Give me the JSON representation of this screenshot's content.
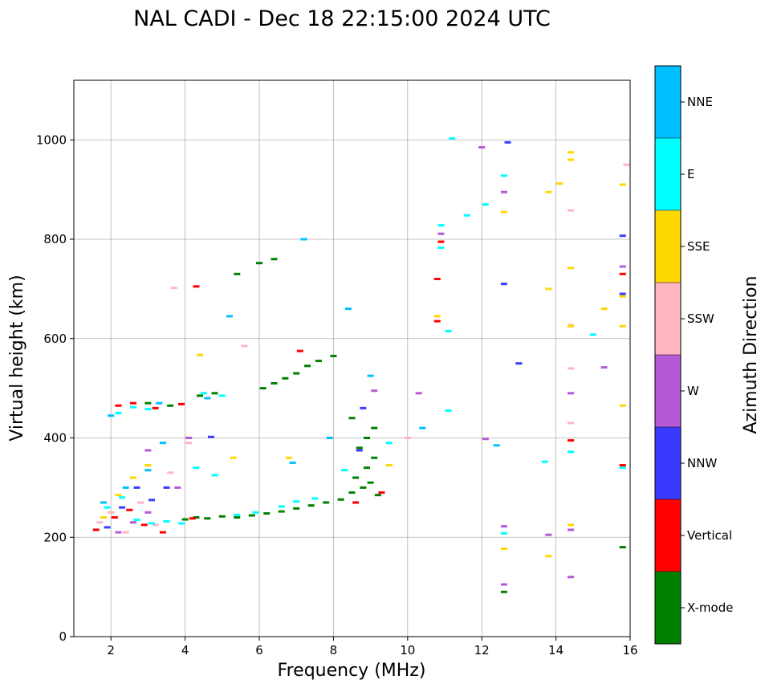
{
  "chart_data": {
    "type": "scatter",
    "title": "NAL CADI - Dec 18 22:15:00 2024 UTC",
    "xlabel": "Frequency (MHz)",
    "ylabel": "Virtual height (km)",
    "xlim": [
      1,
      16
    ],
    "ylim": [
      0,
      1120
    ],
    "xticks": [
      2,
      4,
      6,
      8,
      10,
      12,
      14,
      16
    ],
    "yticks": [
      0,
      200,
      400,
      600,
      800,
      1000
    ],
    "grid": true,
    "colorbar": {
      "title": "Azimuth Direction",
      "categories": [
        {
          "name": "X-mode",
          "color": "#008000"
        },
        {
          "name": "Vertical",
          "color": "#ff0000"
        },
        {
          "name": "NNW",
          "color": "#3a3aff"
        },
        {
          "name": "W",
          "color": "#b45ad7"
        },
        {
          "name": "SSW",
          "color": "#ffb6c1"
        },
        {
          "name": "SSE",
          "color": "#ffd700"
        },
        {
          "name": "E",
          "color": "#00ffff"
        },
        {
          "name": "NNE",
          "color": "#00bfff"
        }
      ]
    },
    "series": [
      {
        "name": "X-mode",
        "points": [
          [
            4.0,
            236
          ],
          [
            4.3,
            240
          ],
          [
            4.6,
            238
          ],
          [
            5.0,
            242
          ],
          [
            5.4,
            240
          ],
          [
            5.8,
            244
          ],
          [
            6.2,
            248
          ],
          [
            6.6,
            252
          ],
          [
            7.0,
            258
          ],
          [
            7.4,
            264
          ],
          [
            7.8,
            270
          ],
          [
            8.2,
            276
          ],
          [
            8.5,
            290
          ],
          [
            8.8,
            300
          ],
          [
            9.0,
            310
          ],
          [
            9.2,
            285
          ],
          [
            8.6,
            320
          ],
          [
            8.9,
            340
          ],
          [
            9.1,
            360
          ],
          [
            8.7,
            380
          ],
          [
            8.9,
            400
          ],
          [
            9.1,
            420
          ],
          [
            8.5,
            440
          ],
          [
            6.1,
            500
          ],
          [
            6.4,
            510
          ],
          [
            6.7,
            520
          ],
          [
            7.0,
            530
          ],
          [
            7.3,
            545
          ],
          [
            7.6,
            555
          ],
          [
            8.0,
            565
          ],
          [
            5.4,
            730
          ],
          [
            6.0,
            752
          ],
          [
            6.4,
            760
          ],
          [
            4.4,
            485
          ],
          [
            4.8,
            490
          ],
          [
            3.6,
            465
          ],
          [
            3.0,
            470
          ],
          [
            12.6,
            90
          ],
          [
            15.8,
            180
          ]
        ]
      },
      {
        "name": "Vertical",
        "points": [
          [
            1.6,
            215
          ],
          [
            2.1,
            240
          ],
          [
            2.5,
            255
          ],
          [
            2.9,
            225
          ],
          [
            3.4,
            210
          ],
          [
            4.2,
            238
          ],
          [
            8.6,
            270
          ],
          [
            9.3,
            290
          ],
          [
            2.2,
            465
          ],
          [
            2.6,
            470
          ],
          [
            3.2,
            460
          ],
          [
            3.9,
            468
          ],
          [
            10.8,
            635
          ],
          [
            10.8,
            720
          ],
          [
            10.9,
            795
          ],
          [
            15.8,
            730
          ],
          [
            15.8,
            345
          ],
          [
            14.4,
            395
          ],
          [
            7.1,
            575
          ],
          [
            4.3,
            705
          ]
        ]
      },
      {
        "name": "NNW",
        "points": [
          [
            1.9,
            220
          ],
          [
            2.3,
            260
          ],
          [
            3.1,
            275
          ],
          [
            3.5,
            300
          ],
          [
            8.7,
            375
          ],
          [
            8.8,
            460
          ],
          [
            12.6,
            710
          ],
          [
            12.7,
            995
          ],
          [
            13.0,
            550
          ],
          [
            15.8,
            807
          ],
          [
            15.8,
            690
          ],
          [
            2.7,
            300
          ],
          [
            4.7,
            402
          ]
        ]
      },
      {
        "name": "W",
        "points": [
          [
            2.2,
            210
          ],
          [
            2.6,
            230
          ],
          [
            3.0,
            250
          ],
          [
            3.8,
            300
          ],
          [
            12.6,
            105
          ],
          [
            12.6,
            222
          ],
          [
            13.8,
            205
          ],
          [
            14.4,
            120
          ],
          [
            14.4,
            215
          ],
          [
            14.4,
            490
          ],
          [
            15.3,
            542
          ],
          [
            15.8,
            745
          ],
          [
            12.0,
            985
          ],
          [
            12.6,
            895
          ],
          [
            10.9,
            811
          ],
          [
            12.1,
            398
          ],
          [
            10.3,
            490
          ],
          [
            9.1,
            495
          ],
          [
            3.0,
            375
          ],
          [
            4.1,
            400
          ]
        ]
      },
      {
        "name": "SSW",
        "points": [
          [
            1.7,
            230
          ],
          [
            2.0,
            250
          ],
          [
            2.4,
            210
          ],
          [
            2.8,
            270
          ],
          [
            3.2,
            225
          ],
          [
            3.6,
            330
          ],
          [
            4.1,
            390
          ],
          [
            14.4,
            430
          ],
          [
            14.4,
            540
          ],
          [
            14.4,
            627
          ],
          [
            14.4,
            858
          ],
          [
            15.9,
            950
          ],
          [
            10.0,
            400
          ],
          [
            3.7,
            702
          ],
          [
            5.6,
            585
          ]
        ]
      },
      {
        "name": "SSE",
        "points": [
          [
            1.8,
            240
          ],
          [
            2.2,
            285
          ],
          [
            2.6,
            320
          ],
          [
            3.0,
            345
          ],
          [
            5.3,
            360
          ],
          [
            6.8,
            360
          ],
          [
            9.5,
            345
          ],
          [
            12.6,
            177
          ],
          [
            13.8,
            162
          ],
          [
            13.8,
            700
          ],
          [
            13.8,
            895
          ],
          [
            14.4,
            625
          ],
          [
            14.4,
            742
          ],
          [
            14.4,
            960
          ],
          [
            14.4,
            975
          ],
          [
            12.6,
            855
          ],
          [
            15.3,
            660
          ],
          [
            15.8,
            625
          ],
          [
            15.8,
            685
          ],
          [
            15.8,
            910
          ],
          [
            15.8,
            465
          ],
          [
            14.4,
            225
          ],
          [
            14.1,
            912
          ],
          [
            10.8,
            645
          ],
          [
            4.4,
            567
          ]
        ]
      },
      {
        "name": "E",
        "points": [
          [
            1.9,
            260
          ],
          [
            2.3,
            280
          ],
          [
            2.7,
            235
          ],
          [
            3.1,
            228
          ],
          [
            3.5,
            232
          ],
          [
            3.9,
            228
          ],
          [
            4.3,
            340
          ],
          [
            4.8,
            325
          ],
          [
            5.4,
            245
          ],
          [
            5.9,
            250
          ],
          [
            6.6,
            262
          ],
          [
            7.0,
            272
          ],
          [
            7.5,
            278
          ],
          [
            8.3,
            335
          ],
          [
            9.5,
            390
          ],
          [
            12.6,
            208
          ],
          [
            13.7,
            352
          ],
          [
            14.4,
            372
          ],
          [
            12.6,
            928
          ],
          [
            12.1,
            870
          ],
          [
            11.6,
            848
          ],
          [
            11.2,
            1003
          ],
          [
            10.9,
            828
          ],
          [
            10.9,
            783
          ],
          [
            11.1,
            615
          ],
          [
            11.1,
            455
          ],
          [
            15.0,
            608
          ],
          [
            15.8,
            340
          ],
          [
            4.5,
            490
          ],
          [
            5.0,
            485
          ],
          [
            2.2,
            450
          ],
          [
            2.6,
            462
          ],
          [
            3.0,
            458
          ]
        ]
      },
      {
        "name": "NNE",
        "points": [
          [
            1.8,
            270
          ],
          [
            2.4,
            300
          ],
          [
            3.0,
            335
          ],
          [
            3.4,
            390
          ],
          [
            2.0,
            445
          ],
          [
            3.3,
            470
          ],
          [
            6.9,
            350
          ],
          [
            7.9,
            400
          ],
          [
            8.4,
            660
          ],
          [
            7.2,
            800
          ],
          [
            12.4,
            385
          ],
          [
            5.2,
            645
          ],
          [
            9.0,
            525
          ],
          [
            10.4,
            420
          ],
          [
            4.6,
            480
          ]
        ]
      }
    ]
  }
}
